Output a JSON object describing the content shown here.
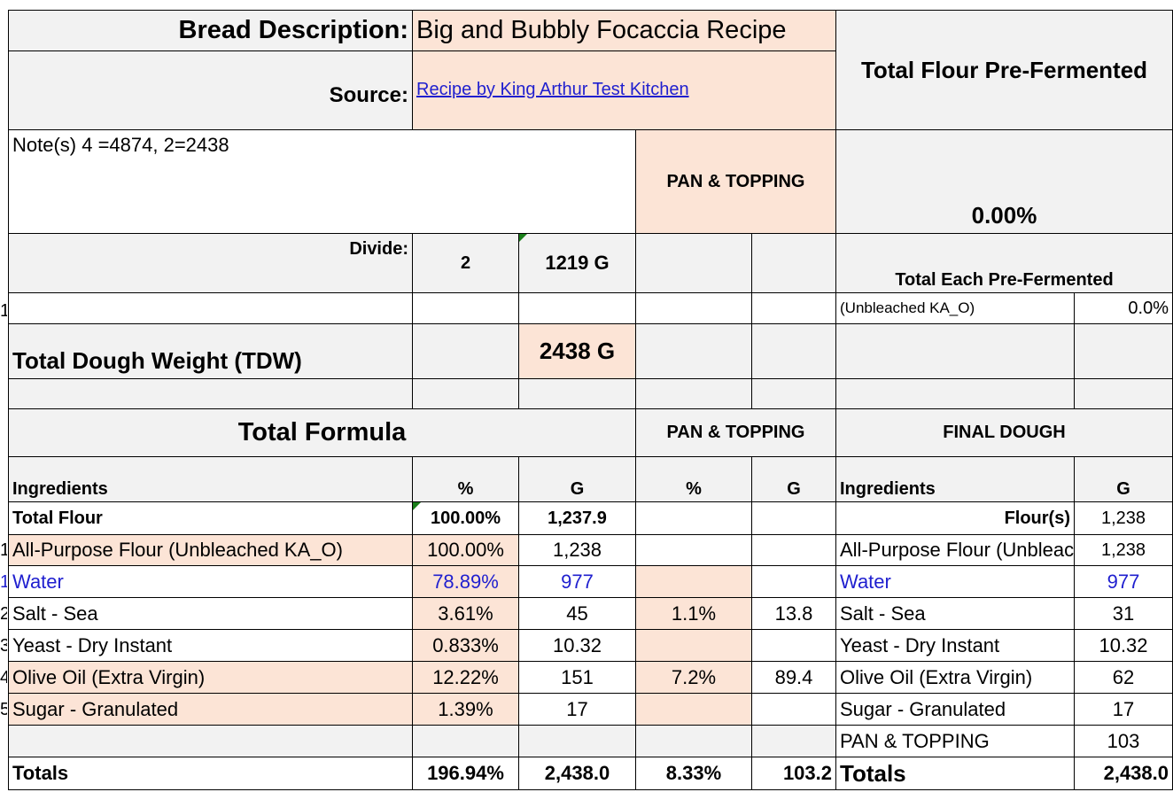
{
  "header": {
    "bread_description_label": "Bread Description:",
    "bread_description_value": "Big and Bubbly Focaccia Recipe",
    "source_label": "Source:",
    "source_link": "Recipe by King Arthur Test Kitchen",
    "total_flour_pre_fermented_label": "Total Flour Pre-Fermented",
    "total_flour_pre_fermented_value": "0.00%",
    "notes": "Note(s) 4 =4874, 2=2438",
    "pan_topping_label": "PAN & TOPPING"
  },
  "divide": {
    "label": "Divide:",
    "count": "2",
    "weight": "1219 G"
  },
  "pre_ferment": {
    "total_each_label": "Total Each Pre-Fermented",
    "flour_name": "(Unbleached KA_O)",
    "flour_pct": "0.0%"
  },
  "tdw": {
    "label": "Total Dough Weight (TDW)",
    "value": "2438 G"
  },
  "total_formula": {
    "title": "Total Formula",
    "pan_topping_title": "PAN & TOPPING",
    "final_dough_title": "FINAL DOUGH",
    "columns": {
      "ingredients": "Ingredients",
      "pct": "%",
      "g": "G",
      "pan_pct": "%",
      "pan_g": "G",
      "final_ingredients": "Ingredients",
      "final_g": "G"
    },
    "total_flour": {
      "name": "Total Flour",
      "pct": "100.00%",
      "g": "1,237.9",
      "final_name": "Flour(s)",
      "final_g": "1,238"
    },
    "rows": [
      {
        "num": "1",
        "name": "All-Purpose Flour  (Unbleached KA_O)",
        "pct": "100.00%",
        "g": "1,238",
        "pan_pct": "",
        "pan_g": "",
        "final_name": "All-Purpose Flour  (Unbleached KA_O)",
        "final_g": "1,238"
      },
      {
        "num": "1",
        "name": "Water",
        "pct": "78.89%",
        "g": "977",
        "pan_pct": "",
        "pan_g": "",
        "final_name": "Water",
        "final_g": "977"
      },
      {
        "num": "2",
        "name": "Salt - Sea",
        "pct": "3.61%",
        "g": "45",
        "pan_pct": "1.1%",
        "pan_g": "13.8",
        "final_name": "Salt - Sea",
        "final_g": "31"
      },
      {
        "num": "3",
        "name": "Yeast - Dry Instant",
        "pct": "0.833%",
        "g": "10.32",
        "pan_pct": "",
        "pan_g": "",
        "final_name": "Yeast - Dry Instant",
        "final_g": "10.32"
      },
      {
        "num": "4",
        "name": "Olive Oil (Extra Virgin)",
        "pct": "12.22%",
        "g": "151",
        "pan_pct": "7.2%",
        "pan_g": "89.4",
        "final_name": "Olive Oil (Extra Virgin)",
        "final_g": "62"
      },
      {
        "num": "5",
        "name": "Sugar - Granulated",
        "pct": "1.39%",
        "g": "17",
        "pan_pct": "",
        "pan_g": "",
        "final_name": "Sugar - Granulated",
        "final_g": "17"
      }
    ],
    "pan_topping_row": {
      "final_name": "PAN & TOPPING",
      "final_g": "103"
    },
    "totals": {
      "label": "Totals",
      "pct": "196.94%",
      "g": "2,438.0",
      "pan_pct": "8.33%",
      "pan_g": "103.2",
      "final_label": "Totals",
      "final_g": "2,438.0"
    }
  }
}
